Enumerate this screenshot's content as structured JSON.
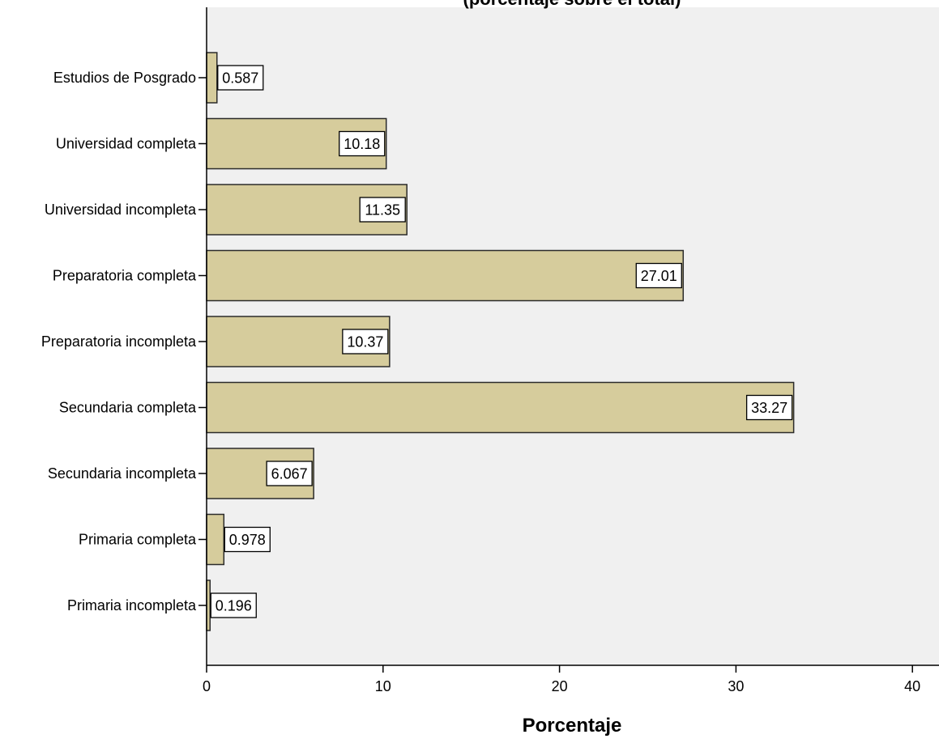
{
  "chart_data": {
    "type": "bar",
    "orientation": "horizontal",
    "title_fragment": "(porcentaje sobre el total)",
    "xlabel": "Porcentaje",
    "ylabel": "",
    "xlim": [
      0,
      40
    ],
    "x_ticks": [
      "0",
      "10",
      "20",
      "30",
      "40"
    ],
    "grid": false,
    "categories": [
      "Estudios de Posgrado",
      "Universidad completa",
      "Universidad incompleta",
      "Preparatoria completa",
      "Preparatoria incompleta",
      "Secundaria completa",
      "Secundaria incompleta",
      "Primaria completa",
      "Primaria incompleta"
    ],
    "values": [
      0.587,
      10.18,
      11.35,
      27.01,
      10.37,
      33.27,
      6.067,
      0.978,
      0.196
    ],
    "value_labels": [
      "0.587",
      "10.18",
      "11.35",
      "27.01",
      "10.37",
      "33.27",
      "6.067",
      "0.978",
      "0.196"
    ],
    "colors": {
      "bar_fill": "#d6cc9c",
      "bar_stroke": "#2b2b2b",
      "plot_background": "#f0f0f0",
      "axis": "#000000"
    }
  }
}
